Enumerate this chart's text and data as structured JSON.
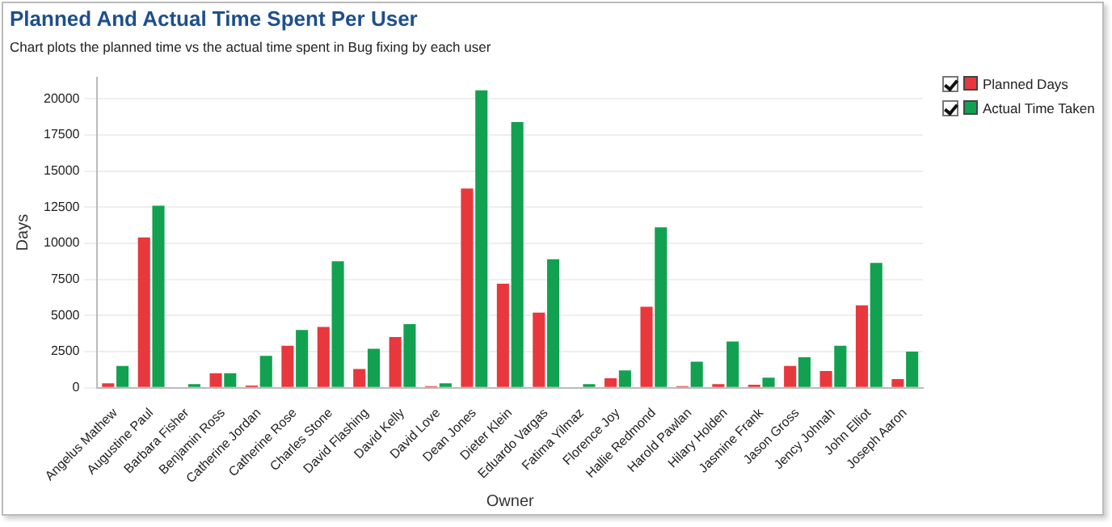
{
  "chart_data": {
    "type": "bar",
    "title": "Planned And Actual Time Spent Per User",
    "subtitle": "Chart plots the planned time vs the actual time spent in Bug fixing by each user",
    "xlabel": "Owner",
    "ylabel": "Days",
    "categories": [
      "Angelus Mathew",
      "Augustine Paul",
      "Barbara Fisher",
      "Benjamin Ross",
      "Catherine Jordan",
      "Catherine Rose",
      "Charles Stone",
      "David Flashing",
      "David Kelly",
      "David Love",
      "Dean Jones",
      "Dieter Klein",
      "Eduardo Vargas",
      "Fatima Yilmaz",
      "Florence Joy",
      "Hallie Redmond",
      "Harold Pawlan",
      "Hilary Holden",
      "Jasmine Frank",
      "Jason Gross",
      "Jency Johnah",
      "John Elliot",
      "Joseph Aaron"
    ],
    "series": [
      {
        "name": "Planned Days",
        "color": "#e8383d",
        "values": [
          300,
          10400,
          0,
          1000,
          150,
          2900,
          4200,
          1300,
          3500,
          100,
          13800,
          7200,
          5200,
          0,
          650,
          5600,
          100,
          250,
          200,
          1500,
          1150,
          5700,
          600
        ]
      },
      {
        "name": "Actual Time Taken",
        "color": "#12a150",
        "values": [
          1500,
          12600,
          250,
          1000,
          2200,
          4000,
          8750,
          2700,
          4400,
          300,
          20600,
          18400,
          8900,
          250,
          1200,
          11100,
          1800,
          3200,
          700,
          2100,
          2900,
          8650,
          2500
        ]
      }
    ],
    "ylim": [
      0,
      21500
    ],
    "yticks": [
      0,
      2500,
      5000,
      7500,
      10000,
      12500,
      15000,
      17500,
      20000
    ],
    "grid": "y",
    "legend": "top right"
  }
}
